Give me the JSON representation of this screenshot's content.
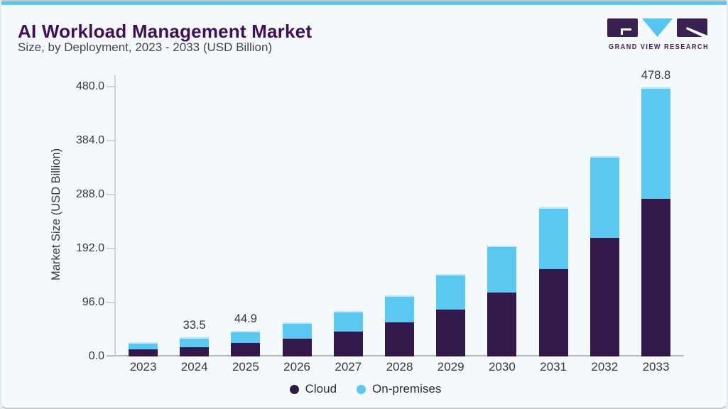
{
  "header": {
    "title": "AI Workload Management Market",
    "subtitle": "Size, by Deployment, 2023 - 2033 (USD Billion)"
  },
  "logo": {
    "name": "GRAND VIEW RESEARCH"
  },
  "chart_data": {
    "type": "bar",
    "stacked": true,
    "title": "AI Workload Management Market",
    "subtitle": "Size, by Deployment, 2023 - 2033 (USD Billion)",
    "ylabel": "Market Size (USD Billion)",
    "xlabel": "",
    "ylim": [
      0,
      500
    ],
    "yticks": [
      0,
      96,
      192,
      288,
      384,
      480
    ],
    "ytick_labels": [
      "0.0",
      "96.0",
      "192.0",
      "288.0",
      "384.0",
      "480.0"
    ],
    "grid": false,
    "legend_position": "bottom-center",
    "categories": [
      "2023",
      "2024",
      "2025",
      "2026",
      "2027",
      "2028",
      "2029",
      "2030",
      "2031",
      "2032",
      "2033"
    ],
    "series": [
      {
        "name": "Cloud",
        "color": "#32194b",
        "values": [
          12.3,
          16.8,
          23.4,
          32.0,
          44.6,
          61.0,
          82.8,
          114.2,
          155.1,
          211.0,
          280.6
        ]
      },
      {
        "name": "On-premises",
        "color": "#5bc8f2",
        "values": [
          12.7,
          16.7,
          21.5,
          28.3,
          36.5,
          48.0,
          63.7,
          82.7,
          109.6,
          144.8,
          198.2
        ]
      }
    ],
    "totals": [
      25.0,
      33.5,
      44.9,
      60.3,
      81.1,
      109.0,
      146.5,
      196.9,
      264.7,
      355.8,
      478.8
    ],
    "value_labels": [
      "",
      "33.5",
      "44.9",
      "",
      "",
      "",
      "",
      "",
      "",
      "",
      "478.8"
    ]
  },
  "colors": {
    "background": "#f4f9fc",
    "accent_strip": "#5bc8f2",
    "cloud": "#32194b",
    "on_premises": "#5bc8f2",
    "title_text": "#3f1059",
    "axis_text": "#3b3741"
  }
}
